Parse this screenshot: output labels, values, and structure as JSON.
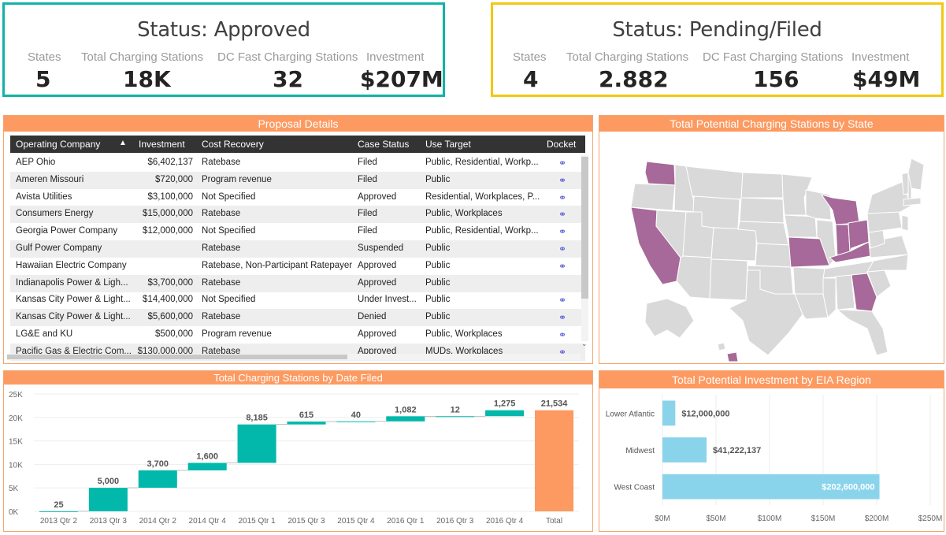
{
  "approved": {
    "title": "Status: Approved",
    "labels": [
      "States",
      "Total Charging Stations",
      "DC Fast Charging Stations",
      "Investment"
    ],
    "values": [
      "5",
      "18K",
      "32",
      "$207M"
    ]
  },
  "pending": {
    "title": "Status: Pending/Filed",
    "labels": [
      "States",
      "Total Charging Stations",
      "DC Fast Charging Stations",
      "Investment"
    ],
    "values": [
      "4",
      "2.882",
      "156",
      "$49M"
    ]
  },
  "proposal": {
    "title": "Proposal Details",
    "columns": [
      "Operating Company",
      "Investment",
      "Cost Recovery",
      "Case Status",
      "Use Target",
      "Docket"
    ],
    "sort_indicator": "▲",
    "rows": [
      {
        "company": "AEP Ohio",
        "investment": "$6,402,137",
        "recovery": "Ratebase",
        "status": "Filed",
        "target": "Public, Residential, Workp...",
        "docket": true
      },
      {
        "company": "Ameren Missouri",
        "investment": "$720,000",
        "recovery": "Program revenue",
        "status": "Filed",
        "target": "Public",
        "docket": true
      },
      {
        "company": "Avista Utilities",
        "investment": "$3,100,000",
        "recovery": "Not Specified",
        "status": "Approved",
        "target": "Residential, Workplaces, P...",
        "docket": true
      },
      {
        "company": "Consumers Energy",
        "investment": "$15,000,000",
        "recovery": "Ratebase",
        "status": "Filed",
        "target": "Public, Workplaces",
        "docket": true
      },
      {
        "company": "Georgia Power Company",
        "investment": "$12,000,000",
        "recovery": "Not Specified",
        "status": "Filed",
        "target": "Public, Residential, Workp...",
        "docket": true
      },
      {
        "company": "Gulf Power Company",
        "investment": "",
        "recovery": "Ratebase",
        "status": "Suspended",
        "target": "Public",
        "docket": true
      },
      {
        "company": "Hawaiian Electric Company",
        "investment": "",
        "recovery": "Ratebase, Non-Participant Ratepayer",
        "status": "Approved",
        "target": "Public",
        "docket": true
      },
      {
        "company": "Indianapolis Power & Ligh...",
        "investment": "$3,700,000",
        "recovery": "Ratebase",
        "status": "Approved",
        "target": "Public",
        "docket": false
      },
      {
        "company": "Kansas City Power & Light...",
        "investment": "$14,400,000",
        "recovery": "Not Specified",
        "status": "Under Invest...",
        "target": "Public",
        "docket": true
      },
      {
        "company": "Kansas City Power & Light...",
        "investment": "$5,600,000",
        "recovery": "Ratebase",
        "status": "Denied",
        "target": "Public",
        "docket": true
      },
      {
        "company": "LG&E and KU",
        "investment": "$500,000",
        "recovery": "Program revenue",
        "status": "Approved",
        "target": "Public, Workplaces",
        "docket": true
      },
      {
        "company": "Pacific Gas & Electric Com...",
        "investment": "$130,000,000",
        "recovery": "Ratebase",
        "status": "Approved",
        "target": "MUDs, Workplaces",
        "docket": true
      }
    ]
  },
  "map": {
    "title": "Total Potential Charging Stations by State",
    "highlighted_color": "#a66999",
    "base_color": "#d9d9d9"
  },
  "chart_data": [
    {
      "type": "waterfall",
      "title": "Total Charging Stations by Date Filed",
      "categories": [
        "2013 Qtr 2",
        "2013 Qtr 3",
        "2014 Qtr 2",
        "2014 Qtr 4",
        "2015 Qtr 1",
        "2015 Qtr 3",
        "2015 Qtr 4",
        "2016 Qtr 1",
        "2016 Qtr 3",
        "2016 Qtr 4",
        "Total"
      ],
      "values": [
        25,
        5000,
        3700,
        1600,
        8185,
        615,
        40,
        1082,
        12,
        1275,
        21534
      ],
      "labels": [
        "25",
        "5,000",
        "3,700",
        "1,600",
        "8,185",
        "615",
        "40",
        "1,082",
        "12",
        "1,275",
        "21,534"
      ],
      "ylim": [
        0,
        25000
      ],
      "yticks": [
        "0K",
        "5K",
        "10K",
        "15K",
        "20K",
        "25K"
      ],
      "ytick_values": [
        0,
        5000,
        10000,
        15000,
        20000,
        25000
      ],
      "increase_color": "#01b8aa",
      "total_color": "#fd9a61"
    },
    {
      "type": "bar",
      "orientation": "horizontal",
      "title": "Total Potential Investment by EIA Region",
      "categories": [
        "Lower Atlantic",
        "Midwest",
        "West Coast"
      ],
      "values": [
        12000000,
        41222137,
        202600000
      ],
      "labels": [
        "$12,000,000",
        "$41,222,137",
        "$202,600,000"
      ],
      "xlim": [
        0,
        250000000
      ],
      "xticks": [
        "$0M",
        "$50M",
        "$100M",
        "$150M",
        "$200M",
        "$250M"
      ],
      "xtick_values": [
        0,
        50000000,
        100000000,
        150000000,
        200000000,
        250000000
      ],
      "color": "#8ad4eb"
    }
  ]
}
